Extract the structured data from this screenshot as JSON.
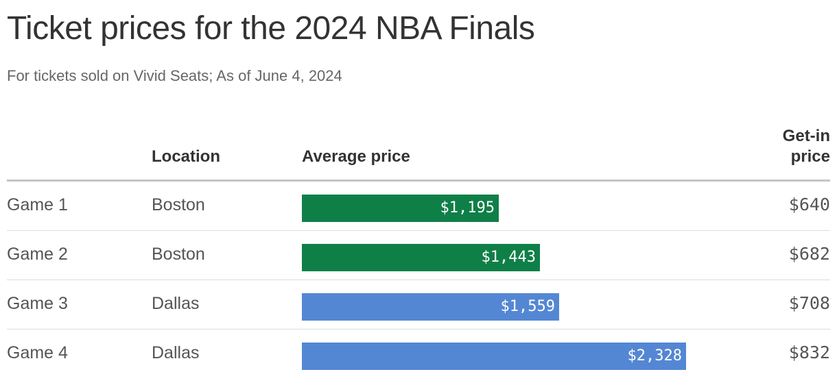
{
  "title": "Ticket prices for the 2024 NBA Finals",
  "subtitle": "For tickets sold on Vivid Seats; As of June 4, 2024",
  "columns": {
    "location": "Location",
    "average_price": "Average price",
    "getin_line1": "Get-in",
    "getin_line2": "price"
  },
  "colors": {
    "boston": "#0f7f48",
    "dallas": "#5487d3"
  },
  "chart_data": {
    "type": "bar",
    "categories": [
      "Game 1",
      "Game 2",
      "Game 3",
      "Game 4"
    ],
    "locations": [
      "Boston",
      "Boston",
      "Dallas",
      "Dallas"
    ],
    "values": [
      1195,
      1443,
      1559,
      2328
    ],
    "value_labels": [
      "$1,195",
      "$1,443",
      "$1,559",
      "$2,328"
    ],
    "getin": [
      "$640",
      "$682",
      "$708",
      "$832"
    ],
    "xlim": [
      0,
      2500
    ],
    "grid": false
  }
}
